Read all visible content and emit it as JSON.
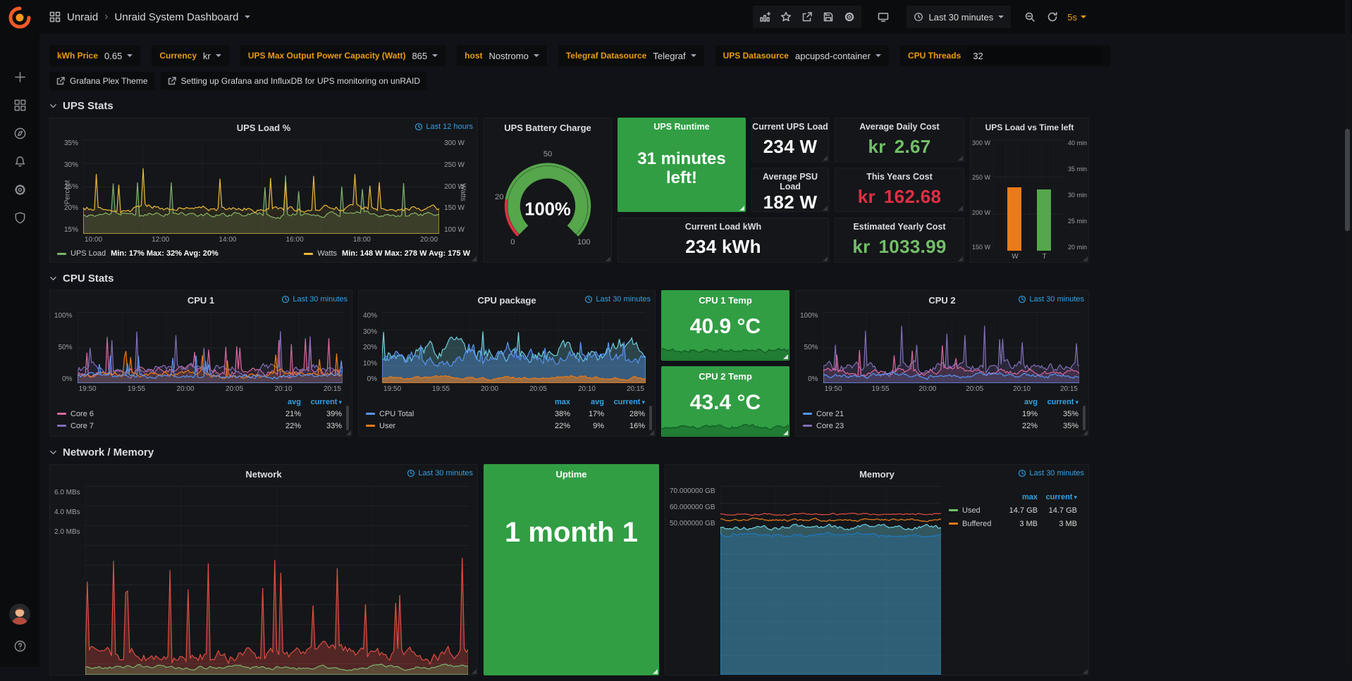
{
  "colors": {
    "accent_orange": "#eb9b13",
    "link_blue": "#33a2e5",
    "green_panel": "#319e44",
    "value_green": "#73bf69",
    "value_red": "#e02f44"
  },
  "nav": {
    "breadcrumb_root": "Unraid",
    "breadcrumb_current": "Unraid System Dashboard",
    "time_range_label": "Last 30 minutes",
    "refresh_interval": "5s"
  },
  "variables": {
    "items": [
      {
        "label": "kWh Price",
        "value": "0.65"
      },
      {
        "label": "Currency",
        "value": "kr"
      },
      {
        "label": "UPS Max Output Power Capacity (Watt)",
        "value": "865"
      },
      {
        "label": "host",
        "value": "Nostromo"
      },
      {
        "label": "Telegraf Datasource",
        "value": "Telegraf"
      },
      {
        "label": "UPS Datasource",
        "value": "apcupsd-container"
      },
      {
        "label": "CPU Threads",
        "value": "32"
      }
    ],
    "links": [
      "Grafana Plex Theme",
      "Setting up Grafana and InfluxDB for UPS monitoring on unRAID"
    ]
  },
  "sections": {
    "ups": "UPS Stats",
    "cpu": "CPU Stats",
    "netmem": "Network / Memory"
  },
  "panels": {
    "ups_load": {
      "title": "UPS Load %",
      "time_badge": "Last 12 hours",
      "y_left_label": "Percent",
      "y_left": [
        "35%",
        "30%",
        "25%",
        "20%",
        "15%"
      ],
      "y_right_label": "Watts",
      "y_right": [
        "300 W",
        "250 W",
        "200 W",
        "150 W",
        "100 W"
      ],
      "x_ticks": [
        "10:00",
        "12:00",
        "14:00",
        "16:00",
        "18:00",
        "20:00"
      ],
      "legend": [
        {
          "name": "UPS Load",
          "stats": "Min: 17% Max: 32% Avg: 20%",
          "color": "#7eb26d"
        },
        {
          "name": "Watts",
          "stats": "Min: 148 W Max: 278 W Avg: 175 W",
          "color": "#eab839"
        }
      ]
    },
    "battery": {
      "title": "UPS Battery Charge",
      "value": "100%",
      "ticks": [
        "0",
        "20",
        "50",
        "100"
      ],
      "arc_color": "#56a64b",
      "threshold_red": "#e02f44"
    },
    "current_ups_load": {
      "title": "Current UPS Load",
      "value": "234 W"
    },
    "ups_runtime": {
      "title": "UPS Runtime",
      "value": "31 minutes left!"
    },
    "avg_daily_cost": {
      "title": "Average Daily Cost",
      "currency": "kr",
      "amount": "2.67"
    },
    "avg_psu_load": {
      "title": "Average PSU Load",
      "value": "182 W"
    },
    "this_years_cost": {
      "title": "This Years Cost",
      "currency": "kr",
      "amount": "162.68"
    },
    "current_load_kwh": {
      "title": "Current Load kWh",
      "value": "234 kWh"
    },
    "est_yearly_cost": {
      "title": "Estimated Yearly Cost",
      "currency": "kr",
      "amount": "1033.99"
    },
    "ups_load_vs_time": {
      "title": "UPS Load vs Time left",
      "y_left": [
        "300 W",
        "250 W",
        "200 W",
        "150 W"
      ],
      "y_right": [
        "40 min",
        "35 min",
        "30 min",
        "25 min",
        "20 min"
      ],
      "bars": [
        {
          "label": "W",
          "color": "#eb7b18",
          "height": "57%"
        },
        {
          "label": "T",
          "color": "#56a64b",
          "height": "55%"
        }
      ]
    },
    "cpu1": {
      "title": "CPU 1",
      "time_badge": "Last 30 minutes",
      "y_ticks": [
        "100%",
        "50%",
        "0%"
      ],
      "x_ticks": [
        "19:50",
        "19:55",
        "20:00",
        "20:05",
        "20:10",
        "20:15"
      ],
      "legend_headers": [
        "avg",
        "current"
      ],
      "legend_rows": [
        {
          "name": "Core 6",
          "color": "#d6689e",
          "v1": "21%",
          "v2": "39%"
        },
        {
          "name": "Core 7",
          "color": "#806eb7",
          "v1": "22%",
          "v2": "33%"
        }
      ]
    },
    "cpu_package": {
      "title": "CPU package",
      "time_badge": "Last 30 minutes",
      "y_ticks": [
        "40%",
        "30%",
        "20%",
        "10%",
        "0%"
      ],
      "x_ticks": [
        "19:50",
        "19:55",
        "20:00",
        "20:05",
        "20:10",
        "20:15"
      ],
      "legend_headers": [
        "max",
        "avg",
        "current"
      ],
      "legend_rows": [
        {
          "name": "CPU Total",
          "color": "#5794f2",
          "v1": "38%",
          "v2": "17%",
          "v3": "28%"
        },
        {
          "name": "User",
          "color": "#eb7b18",
          "v1": "22%",
          "v2": "9%",
          "v3": "16%"
        }
      ]
    },
    "cpu1_temp": {
      "title": "CPU 1 Temp",
      "value": "40.9 °C"
    },
    "cpu2_temp": {
      "title": "CPU 2 Temp",
      "value": "43.4 °C"
    },
    "cpu2": {
      "title": "CPU 2",
      "time_badge": "Last 30 minutes",
      "y_ticks": [
        "100%",
        "50%",
        "0%"
      ],
      "x_ticks": [
        "19:50",
        "19:55",
        "20:00",
        "20:05",
        "20:10",
        "20:15"
      ],
      "legend_headers": [
        "avg",
        "current"
      ],
      "legend_rows": [
        {
          "name": "Core 21",
          "color": "#5794f2",
          "v1": "19%",
          "v2": "35%"
        },
        {
          "name": "Core 23",
          "color": "#806eb7",
          "v1": "22%",
          "v2": "35%"
        }
      ]
    },
    "network": {
      "title": "Network",
      "time_badge": "Last 30 minutes",
      "y_ticks": [
        "6.0 MBs",
        "4.0 MBs",
        "2.0 MBs"
      ],
      "series_color": "#e24d42"
    },
    "uptime": {
      "title": "Uptime",
      "value": "1 month 1"
    },
    "memory": {
      "title": "Memory",
      "time_badge": "Last 30 minutes",
      "y_ticks": [
        "70.000000 GB",
        "60.000000 GB",
        "50.000000 GB"
      ],
      "legend_headers": [
        "max",
        "current"
      ],
      "legend_rows": [
        {
          "name": "Used",
          "color": "#73bf69",
          "v1": "14.7 GB",
          "v2": "14.7 GB"
        },
        {
          "name": "Buffered",
          "color": "#eb7b18",
          "v1": "3 MB",
          "v2": "3 MB"
        }
      ]
    }
  }
}
